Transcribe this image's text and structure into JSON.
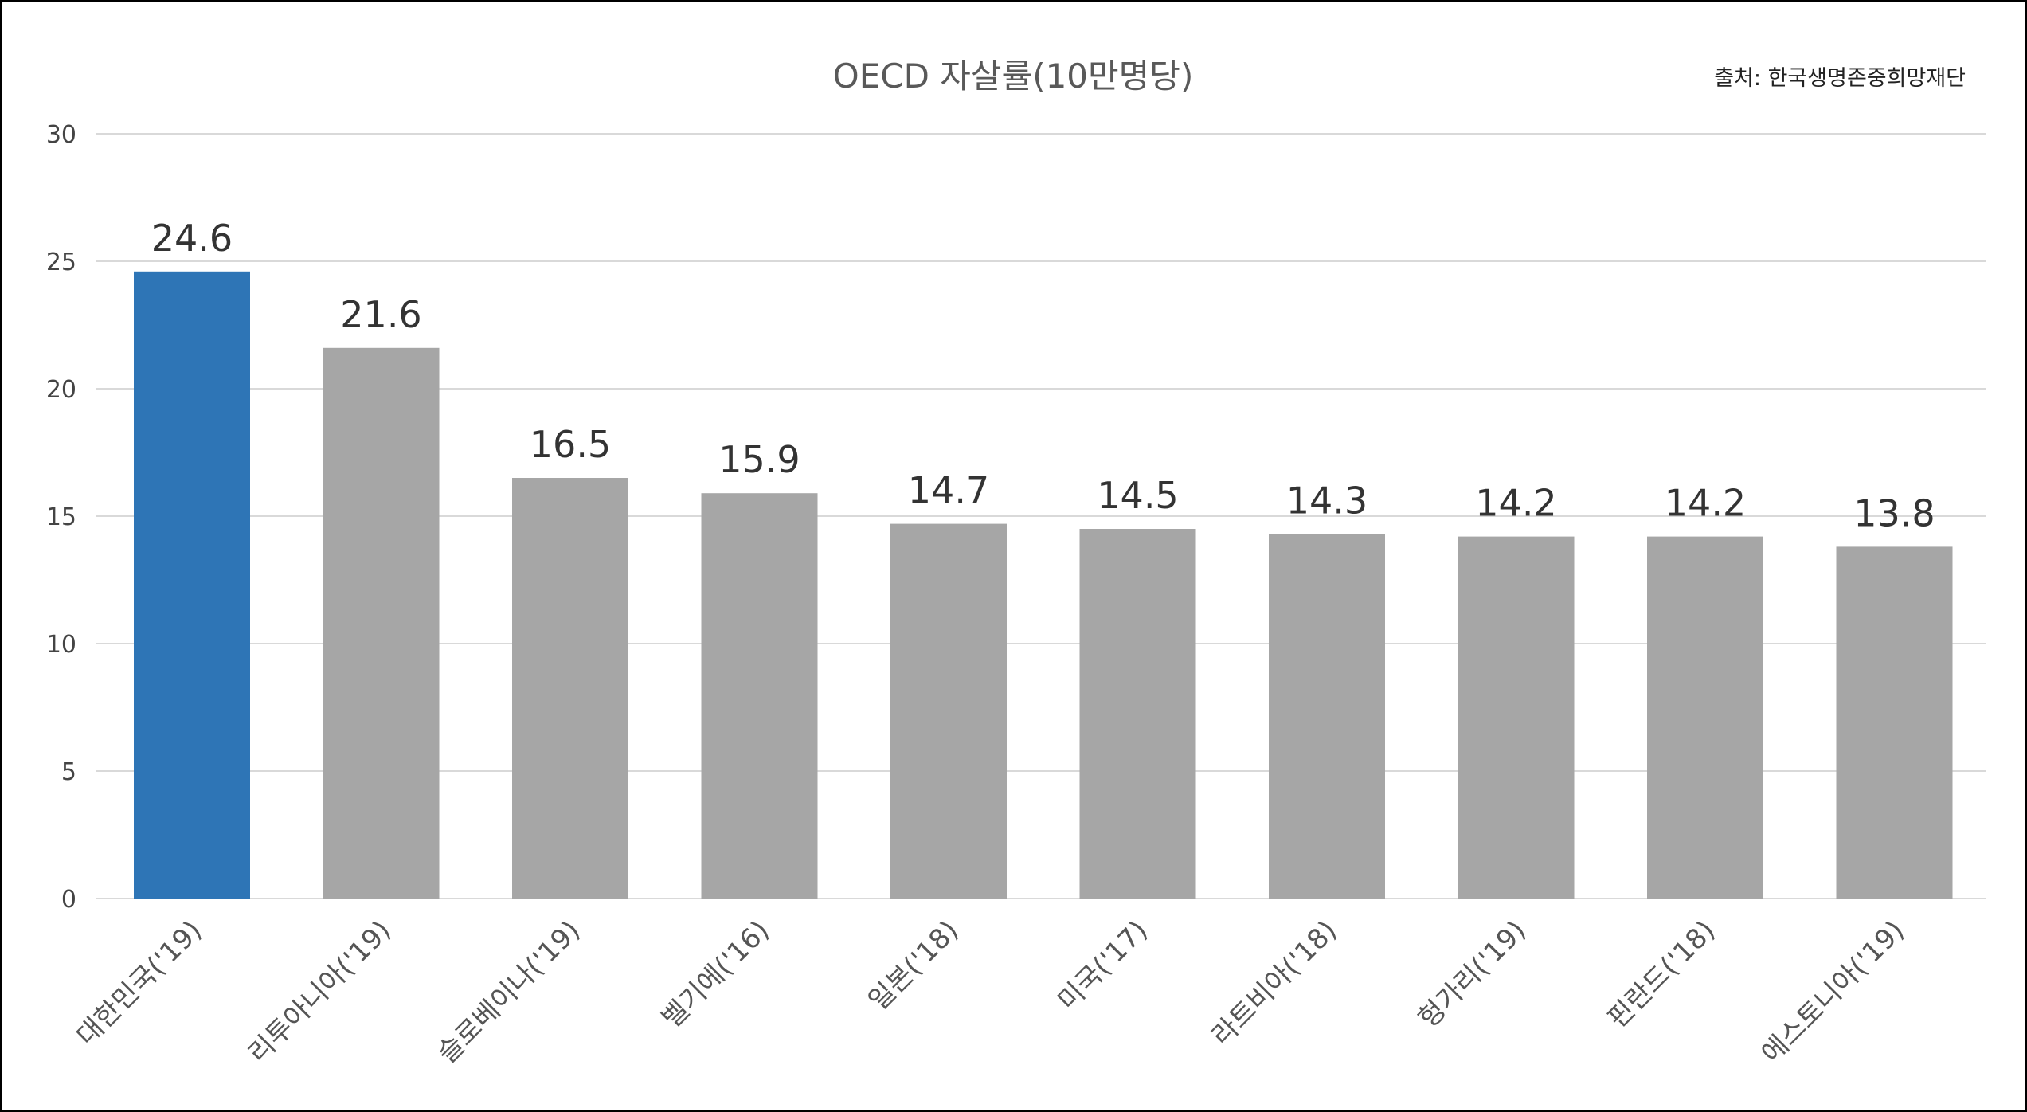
{
  "chart_data": {
    "type": "bar",
    "title": "OECD 자살률(10만명당)",
    "source": "출처: 한국생명존중희망재단",
    "xlabel": "",
    "ylabel": "",
    "ylim": [
      0,
      30
    ],
    "yticks": [
      "0",
      "5",
      "10",
      "15",
      "20",
      "25",
      "30"
    ],
    "grid": true,
    "categories": [
      "대한민국('19)",
      "리투아니아('19)",
      "슬로베이나('19)",
      "벨기에('16)",
      "일본('18)",
      "미국('17)",
      "라트비아('18)",
      "헝가리('19)",
      "핀란드('18)",
      "에스토니아('19)"
    ],
    "values": [
      24.6,
      21.6,
      16.5,
      15.9,
      14.7,
      14.5,
      14.3,
      14.2,
      14.2,
      13.8
    ],
    "value_labels": [
      "24.6",
      "21.6",
      "16.5",
      "15.9",
      "14.7",
      "14.5",
      "14.3",
      "14.2",
      "14.2",
      "13.8"
    ],
    "colors": {
      "highlight": "#2E75B6",
      "default": "#A6A6A6"
    },
    "highlight_index": 0
  }
}
